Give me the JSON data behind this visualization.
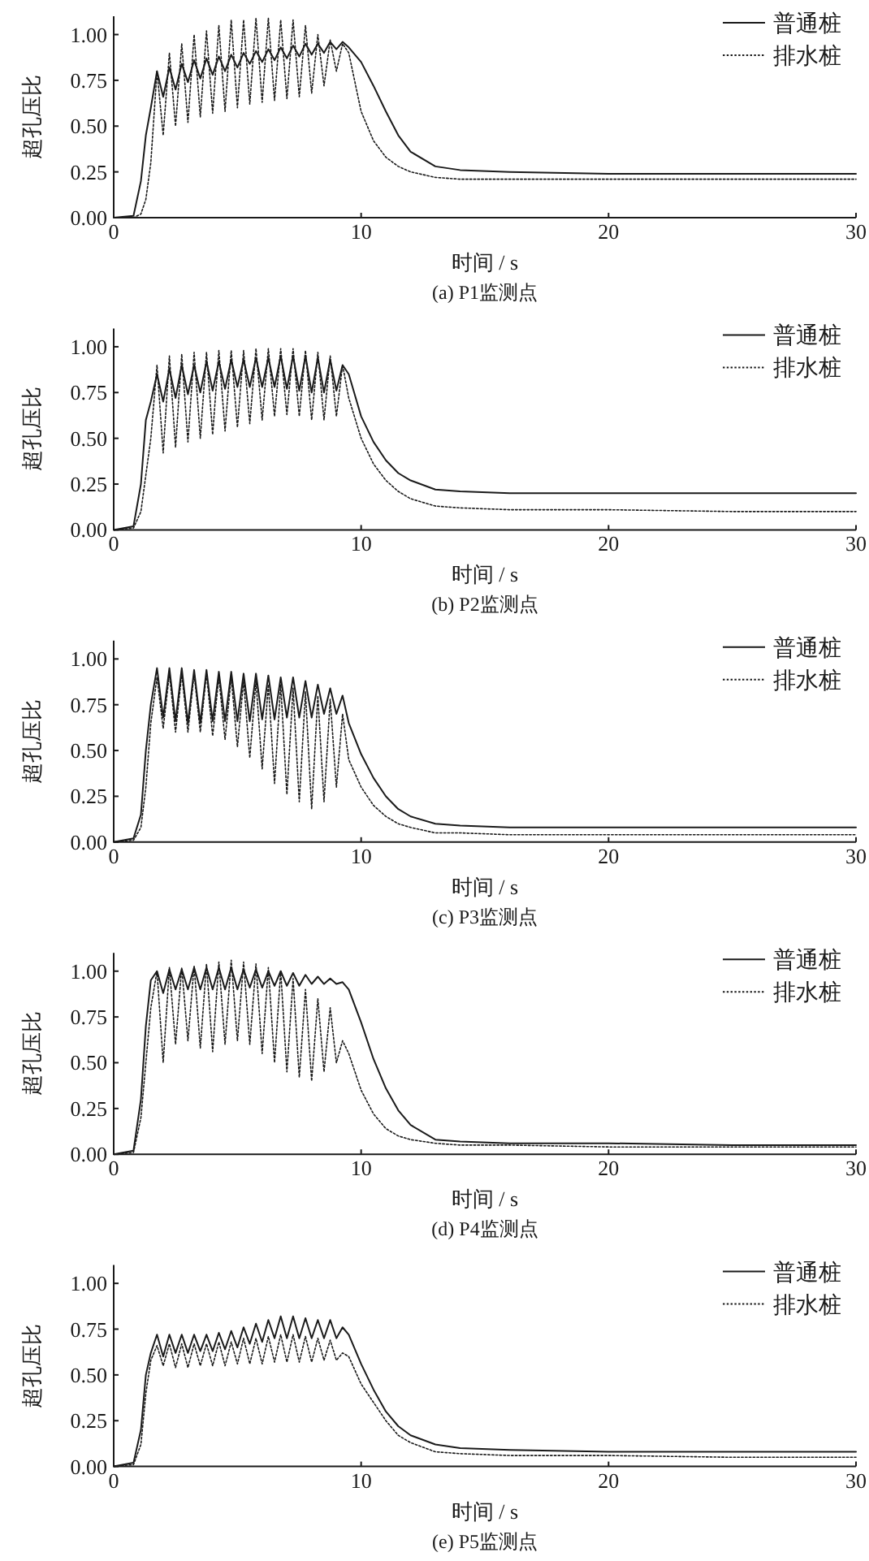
{
  "chart_data": [
    {
      "type": "line",
      "title": "(a) P1监测点",
      "xlabel": "时间 / s",
      "ylabel": "超孔压比",
      "xlim": [
        0,
        30
      ],
      "ylim": [
        0,
        1.1
      ],
      "xticks": [
        0,
        10,
        20,
        30
      ],
      "yticks": [
        {
          "value": 0,
          "label": "0.00"
        },
        {
          "value": 0.25,
          "label": "0.25"
        },
        {
          "value": 0.5,
          "label": "0.50"
        },
        {
          "value": 0.75,
          "label": "0.75"
        },
        {
          "value": 1,
          "label": "1.00"
        }
      ],
      "legend": "top right",
      "x": [
        0,
        0.8,
        1.1,
        1.3,
        1.5,
        1.75,
        2,
        2.25,
        2.5,
        2.75,
        3,
        3.25,
        3.5,
        3.75,
        4,
        4.25,
        4.5,
        4.75,
        5,
        5.25,
        5.5,
        5.75,
        6,
        6.25,
        6.5,
        6.75,
        7,
        7.25,
        7.5,
        7.75,
        8,
        8.25,
        8.5,
        8.75,
        9,
        9.25,
        9.5,
        10,
        10.5,
        11,
        11.5,
        12,
        13,
        14,
        16,
        20,
        25,
        30
      ],
      "series": [
        {
          "name": "普通桩",
          "color": "#1a1a1a",
          "line_style": "solid",
          "values": [
            0,
            0.01,
            0.2,
            0.45,
            0.6,
            0.8,
            0.66,
            0.82,
            0.7,
            0.84,
            0.74,
            0.86,
            0.76,
            0.87,
            0.78,
            0.88,
            0.8,
            0.89,
            0.82,
            0.9,
            0.84,
            0.91,
            0.85,
            0.92,
            0.86,
            0.93,
            0.87,
            0.94,
            0.88,
            0.95,
            0.89,
            0.95,
            0.9,
            0.96,
            0.92,
            0.96,
            0.93,
            0.85,
            0.72,
            0.58,
            0.45,
            0.36,
            0.28,
            0.26,
            0.25,
            0.24,
            0.24,
            0.24
          ]
        },
        {
          "name": "排水桩",
          "color": "#1a1a1a",
          "line_style": "dotted",
          "values": [
            0,
            0,
            0.02,
            0.1,
            0.3,
            0.8,
            0.45,
            0.9,
            0.5,
            0.95,
            0.52,
            1.0,
            0.55,
            1.02,
            0.57,
            1.05,
            0.58,
            1.08,
            0.6,
            1.08,
            0.62,
            1.09,
            0.63,
            1.09,
            0.64,
            1.08,
            0.65,
            1.08,
            0.66,
            1.05,
            0.68,
            1.0,
            0.72,
            0.97,
            0.8,
            0.95,
            0.9,
            0.58,
            0.42,
            0.33,
            0.28,
            0.25,
            0.22,
            0.21,
            0.21,
            0.21,
            0.21,
            0.21
          ]
        }
      ]
    },
    {
      "type": "line",
      "title": "(b) P2监测点",
      "xlabel": "时间 / s",
      "ylabel": "超孔压比",
      "xlim": [
        0,
        30
      ],
      "ylim": [
        0,
        1.1
      ],
      "xticks": [
        0,
        10,
        20,
        30
      ],
      "yticks": [
        {
          "value": 0,
          "label": "0.00"
        },
        {
          "value": 0.25,
          "label": "0.25"
        },
        {
          "value": 0.5,
          "label": "0.50"
        },
        {
          "value": 0.75,
          "label": "0.75"
        },
        {
          "value": 1,
          "label": "1.00"
        }
      ],
      "legend": "top right",
      "x": [
        0,
        0.8,
        1.1,
        1.3,
        1.5,
        1.75,
        2,
        2.25,
        2.5,
        2.75,
        3,
        3.25,
        3.5,
        3.75,
        4,
        4.25,
        4.5,
        4.75,
        5,
        5.25,
        5.5,
        5.75,
        6,
        6.25,
        6.5,
        6.75,
        7,
        7.25,
        7.5,
        7.75,
        8,
        8.25,
        8.5,
        8.75,
        9,
        9.25,
        9.5,
        10,
        10.5,
        11,
        11.5,
        12,
        13,
        14,
        16,
        20,
        25,
        30
      ],
      "series": [
        {
          "name": "普通桩",
          "color": "#1a1a1a",
          "line_style": "solid",
          "values": [
            0,
            0.02,
            0.25,
            0.6,
            0.7,
            0.85,
            0.7,
            0.88,
            0.72,
            0.9,
            0.74,
            0.9,
            0.75,
            0.92,
            0.76,
            0.92,
            0.77,
            0.93,
            0.78,
            0.93,
            0.78,
            0.94,
            0.78,
            0.94,
            0.78,
            0.95,
            0.77,
            0.95,
            0.76,
            0.95,
            0.75,
            0.94,
            0.75,
            0.93,
            0.76,
            0.9,
            0.85,
            0.62,
            0.48,
            0.38,
            0.31,
            0.27,
            0.22,
            0.21,
            0.2,
            0.2,
            0.2,
            0.2
          ]
        },
        {
          "name": "排水桩",
          "color": "#1a1a1a",
          "line_style": "dotted",
          "values": [
            0,
            0.01,
            0.1,
            0.3,
            0.5,
            0.9,
            0.42,
            0.95,
            0.45,
            0.96,
            0.48,
            0.97,
            0.5,
            0.97,
            0.52,
            0.98,
            0.54,
            0.98,
            0.56,
            0.98,
            0.58,
            0.99,
            0.6,
            0.99,
            0.62,
            0.99,
            0.63,
            0.99,
            0.62,
            0.98,
            0.6,
            0.97,
            0.6,
            0.95,
            0.62,
            0.9,
            0.72,
            0.5,
            0.36,
            0.27,
            0.21,
            0.17,
            0.13,
            0.12,
            0.11,
            0.11,
            0.1,
            0.1
          ]
        }
      ]
    },
    {
      "type": "line",
      "title": "(c) P3监测点",
      "xlabel": "时间 / s",
      "ylabel": "超孔压比",
      "xlim": [
        0,
        30
      ],
      "ylim": [
        0,
        1.1
      ],
      "xticks": [
        0,
        10,
        20,
        30
      ],
      "yticks": [
        {
          "value": 0,
          "label": "0.00"
        },
        {
          "value": 0.25,
          "label": "0.25"
        },
        {
          "value": 0.5,
          "label": "0.50"
        },
        {
          "value": 0.75,
          "label": "0.75"
        },
        {
          "value": 1,
          "label": "1.00"
        }
      ],
      "legend": "top right",
      "x": [
        0,
        0.8,
        1.1,
        1.3,
        1.5,
        1.75,
        2,
        2.25,
        2.5,
        2.75,
        3,
        3.25,
        3.5,
        3.75,
        4,
        4.25,
        4.5,
        4.75,
        5,
        5.25,
        5.5,
        5.75,
        6,
        6.25,
        6.5,
        6.75,
        7,
        7.25,
        7.5,
        7.75,
        8,
        8.25,
        8.5,
        8.75,
        9,
        9.25,
        9.5,
        10,
        10.5,
        11,
        11.5,
        12,
        13,
        14,
        16,
        20,
        25,
        30
      ],
      "series": [
        {
          "name": "普通桩",
          "color": "#1a1a1a",
          "line_style": "solid",
          "values": [
            0,
            0.02,
            0.15,
            0.5,
            0.75,
            0.95,
            0.68,
            0.95,
            0.66,
            0.95,
            0.65,
            0.94,
            0.65,
            0.94,
            0.66,
            0.93,
            0.66,
            0.93,
            0.66,
            0.92,
            0.66,
            0.92,
            0.67,
            0.91,
            0.67,
            0.9,
            0.68,
            0.9,
            0.68,
            0.88,
            0.68,
            0.86,
            0.7,
            0.84,
            0.7,
            0.8,
            0.65,
            0.48,
            0.35,
            0.25,
            0.18,
            0.14,
            0.1,
            0.09,
            0.08,
            0.08,
            0.08,
            0.08
          ]
        },
        {
          "name": "排水桩",
          "color": "#1a1a1a",
          "line_style": "dotted",
          "values": [
            0,
            0.01,
            0.08,
            0.3,
            0.65,
            0.9,
            0.62,
            0.92,
            0.6,
            0.92,
            0.6,
            0.92,
            0.6,
            0.92,
            0.58,
            0.9,
            0.56,
            0.9,
            0.52,
            0.88,
            0.46,
            0.88,
            0.4,
            0.86,
            0.32,
            0.86,
            0.26,
            0.84,
            0.22,
            0.82,
            0.18,
            0.8,
            0.22,
            0.78,
            0.3,
            0.7,
            0.45,
            0.3,
            0.2,
            0.14,
            0.1,
            0.08,
            0.05,
            0.05,
            0.04,
            0.04,
            0.04,
            0.04
          ]
        }
      ]
    },
    {
      "type": "line",
      "title": "(d) P4监测点",
      "xlabel": "时间 / s",
      "ylabel": "超孔压比",
      "xlim": [
        0,
        30
      ],
      "ylim": [
        0,
        1.1
      ],
      "xticks": [
        0,
        10,
        20,
        30
      ],
      "yticks": [
        {
          "value": 0,
          "label": "0.00"
        },
        {
          "value": 0.25,
          "label": "0.25"
        },
        {
          "value": 0.5,
          "label": "0.50"
        },
        {
          "value": 0.75,
          "label": "0.75"
        },
        {
          "value": 1,
          "label": "1.00"
        }
      ],
      "legend": "top right",
      "x": [
        0,
        0.8,
        1.1,
        1.3,
        1.5,
        1.75,
        2,
        2.25,
        2.5,
        2.75,
        3,
        3.25,
        3.5,
        3.75,
        4,
        4.25,
        4.5,
        4.75,
        5,
        5.25,
        5.5,
        5.75,
        6,
        6.25,
        6.5,
        6.75,
        7,
        7.25,
        7.5,
        7.75,
        8,
        8.25,
        8.5,
        8.75,
        9,
        9.25,
        9.5,
        10,
        10.5,
        11,
        11.5,
        12,
        13,
        14,
        16,
        20,
        25,
        30
      ],
      "series": [
        {
          "name": "普通桩",
          "color": "#1a1a1a",
          "line_style": "solid",
          "values": [
            0,
            0.02,
            0.3,
            0.7,
            0.95,
            1.0,
            0.88,
            1.01,
            0.9,
            1.01,
            0.9,
            1.02,
            0.9,
            1.02,
            0.9,
            1.02,
            0.9,
            1.02,
            0.9,
            1.01,
            0.91,
            1.01,
            0.91,
            1.0,
            0.92,
            1.0,
            0.92,
            0.99,
            0.92,
            0.98,
            0.93,
            0.97,
            0.93,
            0.96,
            0.93,
            0.94,
            0.9,
            0.72,
            0.52,
            0.36,
            0.24,
            0.16,
            0.08,
            0.07,
            0.06,
            0.06,
            0.05,
            0.05
          ]
        },
        {
          "name": "排水桩",
          "color": "#1a1a1a",
          "line_style": "dotted",
          "values": [
            0,
            0.01,
            0.2,
            0.5,
            0.8,
            1.0,
            0.5,
            1.02,
            0.6,
            1.02,
            0.62,
            1.03,
            0.58,
            1.04,
            0.56,
            1.05,
            0.6,
            1.06,
            0.62,
            1.05,
            0.6,
            1.04,
            0.55,
            1.02,
            0.5,
            1.0,
            0.45,
            0.96,
            0.42,
            0.9,
            0.4,
            0.85,
            0.45,
            0.8,
            0.5,
            0.62,
            0.55,
            0.35,
            0.22,
            0.14,
            0.1,
            0.08,
            0.06,
            0.05,
            0.05,
            0.04,
            0.04,
            0.04
          ]
        }
      ]
    },
    {
      "type": "line",
      "title": "(e) P5监测点",
      "xlabel": "时间 / s",
      "ylabel": "超孔压比",
      "xlim": [
        0,
        30
      ],
      "ylim": [
        0,
        1.1
      ],
      "xticks": [
        0,
        10,
        20,
        30
      ],
      "yticks": [
        {
          "value": 0,
          "label": "0.00"
        },
        {
          "value": 0.25,
          "label": "0.25"
        },
        {
          "value": 0.5,
          "label": "0.50"
        },
        {
          "value": 0.75,
          "label": "0.75"
        },
        {
          "value": 1,
          "label": "1.00"
        }
      ],
      "legend": "top right",
      "x": [
        0,
        0.8,
        1.1,
        1.3,
        1.5,
        1.75,
        2,
        2.25,
        2.5,
        2.75,
        3,
        3.25,
        3.5,
        3.75,
        4,
        4.25,
        4.5,
        4.75,
        5,
        5.25,
        5.5,
        5.75,
        6,
        6.25,
        6.5,
        6.75,
        7,
        7.25,
        7.5,
        7.75,
        8,
        8.25,
        8.5,
        8.75,
        9,
        9.25,
        9.5,
        10,
        10.5,
        11,
        11.5,
        12,
        13,
        14,
        16,
        20,
        25,
        30
      ],
      "series": [
        {
          "name": "普通桩",
          "color": "#1a1a1a",
          "line_style": "solid",
          "values": [
            0,
            0.02,
            0.2,
            0.5,
            0.62,
            0.72,
            0.6,
            0.72,
            0.62,
            0.72,
            0.62,
            0.72,
            0.63,
            0.72,
            0.63,
            0.73,
            0.64,
            0.74,
            0.65,
            0.76,
            0.67,
            0.78,
            0.68,
            0.8,
            0.7,
            0.82,
            0.7,
            0.82,
            0.7,
            0.81,
            0.7,
            0.8,
            0.7,
            0.8,
            0.7,
            0.76,
            0.72,
            0.56,
            0.42,
            0.3,
            0.22,
            0.17,
            0.12,
            0.1,
            0.09,
            0.08,
            0.08,
            0.08
          ]
        },
        {
          "name": "排水桩",
          "color": "#1a1a1a",
          "line_style": "dotted",
          "values": [
            0,
            0.01,
            0.12,
            0.4,
            0.58,
            0.66,
            0.55,
            0.67,
            0.54,
            0.67,
            0.54,
            0.67,
            0.55,
            0.67,
            0.55,
            0.68,
            0.55,
            0.68,
            0.56,
            0.7,
            0.56,
            0.7,
            0.56,
            0.71,
            0.57,
            0.72,
            0.57,
            0.72,
            0.57,
            0.71,
            0.57,
            0.7,
            0.58,
            0.69,
            0.58,
            0.62,
            0.6,
            0.45,
            0.35,
            0.25,
            0.17,
            0.13,
            0.08,
            0.07,
            0.06,
            0.06,
            0.05,
            0.05
          ]
        }
      ]
    }
  ]
}
